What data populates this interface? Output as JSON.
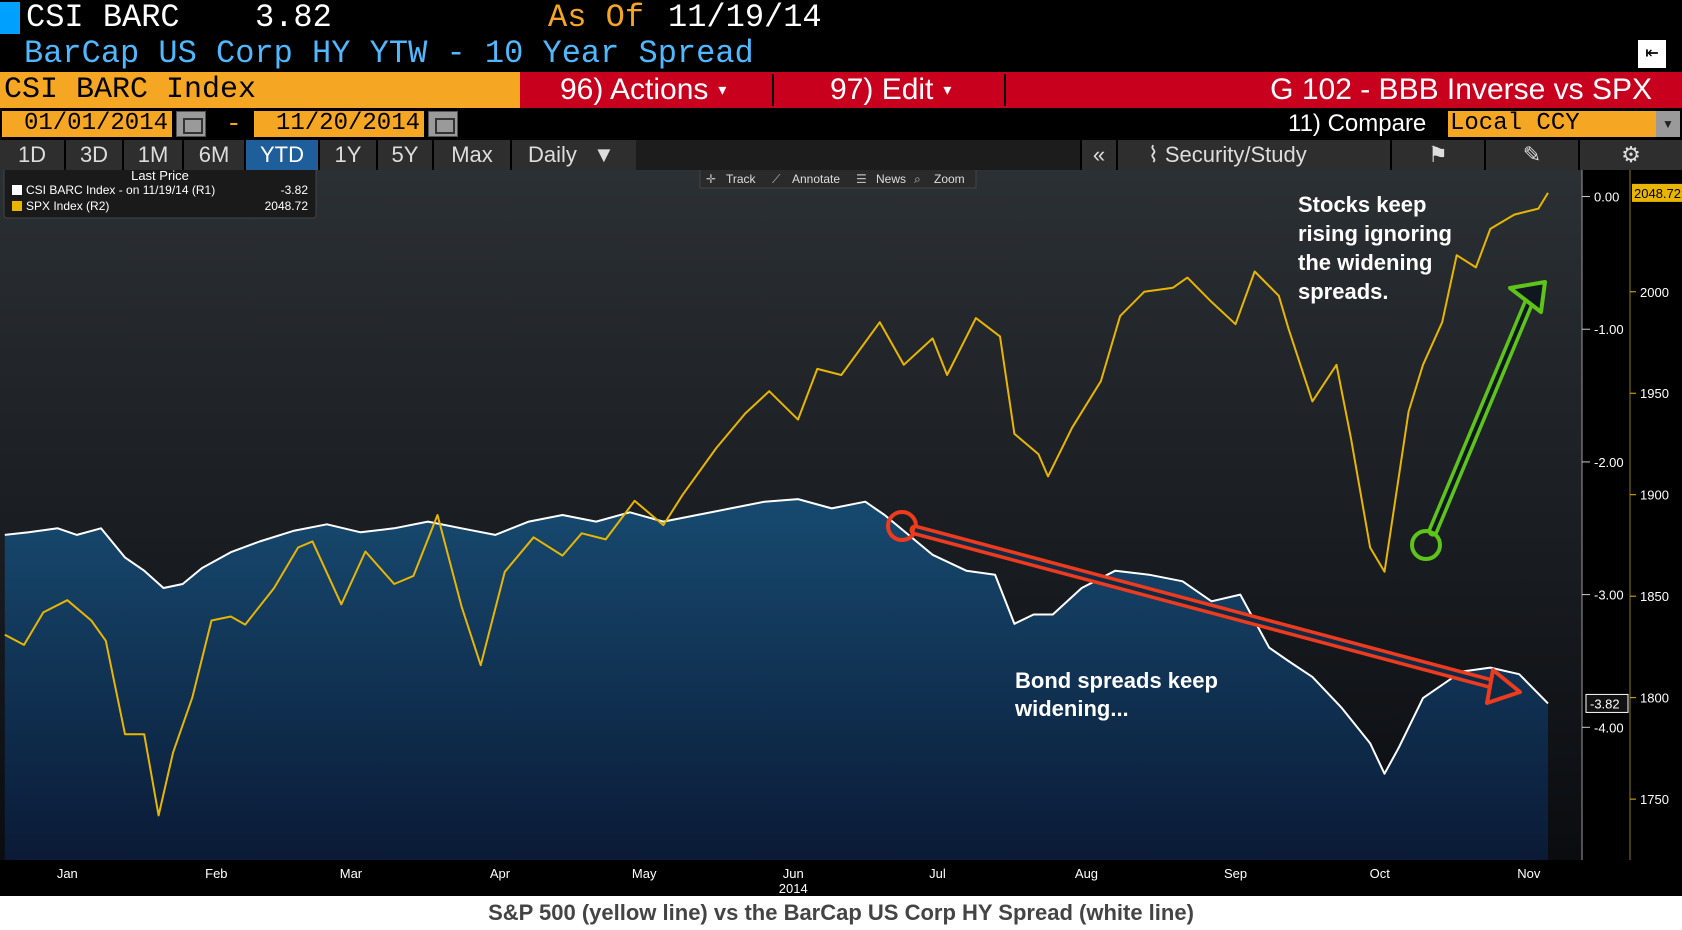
{
  "header": {
    "ticker": "CSI BARC",
    "price": "3.82",
    "asof_label": "As Of",
    "asof_date": "11/19/14",
    "subtitle": "BarCap US Corp HY YTW - 10 Year Spread",
    "index_name": "CSI BARC Index",
    "actions_label": "96) Actions",
    "edit_label": "97) Edit",
    "graph_title": "G 102 - BBB Inverse vs SPX",
    "start_date": "01/01/2014",
    "date_sep": "-",
    "end_date": "11/20/2014",
    "compare_label": "11) Compare",
    "currency": "Local CCY"
  },
  "toolbar": {
    "periods": [
      "1D",
      "3D",
      "1M",
      "6M",
      "YTD",
      "1Y",
      "5Y",
      "Max"
    ],
    "active_period": "YTD",
    "frequency": "Daily",
    "security_study": "Security/Study",
    "chart_tools": [
      "Track",
      "Annotate",
      "News",
      "Zoom"
    ]
  },
  "legend": {
    "title": "Last Price",
    "entries": [
      {
        "label": "CSI BARC Index -  on 11/19/14  (R1)",
        "value": "-3.82",
        "color": "#ffffff"
      },
      {
        "label": "SPX Index  (R2)",
        "value": "2048.72",
        "color": "#e8b600"
      }
    ]
  },
  "chart_data": {
    "type": "line",
    "caption": "S&P 500 (yellow line) vs the BarCap US Corp HY Spread (white line)",
    "x_tick_labels": [
      "Jan",
      "Feb",
      "Mar",
      "Apr",
      "May",
      "Jun",
      "Jul",
      "Aug",
      "Sep",
      "Oct",
      "Nov"
    ],
    "year_label": "2014",
    "x_range": [
      "2014-01-01",
      "2014-11-19"
    ],
    "r1_axis": {
      "ticks": [
        "0.00",
        "-1.00",
        "-2.00",
        "-3.00",
        "-4.00"
      ],
      "range": [
        -5.0,
        0.2
      ],
      "last_value_label": "-3.82"
    },
    "r2_axis": {
      "ticks": [
        "2000",
        "1950",
        "1900",
        "1850",
        "1800",
        "1750"
      ],
      "range": [
        1720,
        2060
      ],
      "last_value_label": "2048.72"
    },
    "series": [
      {
        "name": "CSI BARC Index",
        "axis": "R1",
        "color": "#ffffff",
        "area_fill": true,
        "points": [
          [
            "2014-01-02",
            -2.55
          ],
          [
            "2014-01-07",
            -2.53
          ],
          [
            "2014-01-13",
            -2.5
          ],
          [
            "2014-01-17",
            -2.55
          ],
          [
            "2014-01-22",
            -2.5
          ],
          [
            "2014-01-27",
            -2.72
          ],
          [
            "2014-01-31",
            -2.82
          ],
          [
            "2014-02-04",
            -2.95
          ],
          [
            "2014-02-08",
            -2.92
          ],
          [
            "2014-02-12",
            -2.8
          ],
          [
            "2014-02-18",
            -2.68
          ],
          [
            "2014-02-24",
            -2.6
          ],
          [
            "2014-03-03",
            -2.52
          ],
          [
            "2014-03-10",
            -2.47
          ],
          [
            "2014-03-17",
            -2.53
          ],
          [
            "2014-03-24",
            -2.5
          ],
          [
            "2014-03-31",
            -2.45
          ],
          [
            "2014-04-07",
            -2.5
          ],
          [
            "2014-04-14",
            -2.55
          ],
          [
            "2014-04-21",
            -2.45
          ],
          [
            "2014-04-28",
            -2.4
          ],
          [
            "2014-05-05",
            -2.45
          ],
          [
            "2014-05-12",
            -2.38
          ],
          [
            "2014-05-19",
            -2.45
          ],
          [
            "2014-05-26",
            -2.4
          ],
          [
            "2014-06-02",
            -2.35
          ],
          [
            "2014-06-09",
            -2.3
          ],
          [
            "2014-06-16",
            -2.28
          ],
          [
            "2014-06-23",
            -2.35
          ],
          [
            "2014-06-30",
            -2.3
          ],
          [
            "2014-07-04",
            -2.4
          ],
          [
            "2014-07-09",
            -2.55
          ],
          [
            "2014-07-14",
            -2.7
          ],
          [
            "2014-07-21",
            -2.82
          ],
          [
            "2014-07-27",
            -2.85
          ],
          [
            "2014-07-31",
            -3.22
          ],
          [
            "2014-08-04",
            -3.15
          ],
          [
            "2014-08-08",
            -3.15
          ],
          [
            "2014-08-14",
            -2.95
          ],
          [
            "2014-08-21",
            -2.82
          ],
          [
            "2014-08-28",
            -2.85
          ],
          [
            "2014-09-04",
            -2.9
          ],
          [
            "2014-09-10",
            -3.05
          ],
          [
            "2014-09-16",
            -3.0
          ],
          [
            "2014-09-22",
            -3.4
          ],
          [
            "2014-09-26",
            -3.5
          ],
          [
            "2014-10-01",
            -3.62
          ],
          [
            "2014-10-07",
            -3.85
          ],
          [
            "2014-10-13",
            -4.12
          ],
          [
            "2014-10-16",
            -4.35
          ],
          [
            "2014-10-19",
            -4.15
          ],
          [
            "2014-10-24",
            -3.78
          ],
          [
            "2014-11-01",
            -3.58
          ],
          [
            "2014-11-07",
            -3.55
          ],
          [
            "2014-11-13",
            -3.6
          ],
          [
            "2014-11-19",
            -3.82
          ]
        ]
      },
      {
        "name": "SPX Index",
        "axis": "R2",
        "color": "#e8b600",
        "points": [
          [
            "2014-01-02",
            1831
          ],
          [
            "2014-01-06",
            1826
          ],
          [
            "2014-01-10",
            1842
          ],
          [
            "2014-01-15",
            1848
          ],
          [
            "2014-01-20",
            1838
          ],
          [
            "2014-01-23",
            1828
          ],
          [
            "2014-01-27",
            1782
          ],
          [
            "2014-01-31",
            1782
          ],
          [
            "2014-02-03",
            1742
          ],
          [
            "2014-02-06",
            1773
          ],
          [
            "2014-02-10",
            1800
          ],
          [
            "2014-02-14",
            1838
          ],
          [
            "2014-02-18",
            1840
          ],
          [
            "2014-02-21",
            1836
          ],
          [
            "2014-02-27",
            1854
          ],
          [
            "2014-03-04",
            1874
          ],
          [
            "2014-03-07",
            1877
          ],
          [
            "2014-03-13",
            1846
          ],
          [
            "2014-03-18",
            1872
          ],
          [
            "2014-03-24",
            1856
          ],
          [
            "2014-03-28",
            1860
          ],
          [
            "2014-04-02",
            1890
          ],
          [
            "2014-04-07",
            1845
          ],
          [
            "2014-04-11",
            1816
          ],
          [
            "2014-04-16",
            1862
          ],
          [
            "2014-04-22",
            1879
          ],
          [
            "2014-04-28",
            1870
          ],
          [
            "2014-05-02",
            1881
          ],
          [
            "2014-05-07",
            1878
          ],
          [
            "2014-05-13",
            1897
          ],
          [
            "2014-05-19",
            1885
          ],
          [
            "2014-05-23",
            1900
          ],
          [
            "2014-05-30",
            1923
          ],
          [
            "2014-06-05",
            1940
          ],
          [
            "2014-06-10",
            1951
          ],
          [
            "2014-06-16",
            1937
          ],
          [
            "2014-06-20",
            1962
          ],
          [
            "2014-06-25",
            1959
          ],
          [
            "2014-07-03",
            1985
          ],
          [
            "2014-07-08",
            1964
          ],
          [
            "2014-07-14",
            1977
          ],
          [
            "2014-07-17",
            1959
          ],
          [
            "2014-07-23",
            1987
          ],
          [
            "2014-07-28",
            1978
          ],
          [
            "2014-07-31",
            1930
          ],
          [
            "2014-08-05",
            1920
          ],
          [
            "2014-08-07",
            1909
          ],
          [
            "2014-08-12",
            1933
          ],
          [
            "2014-08-18",
            1956
          ],
          [
            "2014-08-22",
            1988
          ],
          [
            "2014-08-27",
            2000
          ],
          [
            "2014-09-02",
            2002
          ],
          [
            "2014-09-05",
            2007
          ],
          [
            "2014-09-10",
            1995
          ],
          [
            "2014-09-15",
            1984
          ],
          [
            "2014-09-19",
            2010
          ],
          [
            "2014-09-24",
            1998
          ],
          [
            "2014-09-26",
            1982
          ],
          [
            "2014-10-01",
            1946
          ],
          [
            "2014-10-06",
            1964
          ],
          [
            "2014-10-09",
            1928
          ],
          [
            "2014-10-13",
            1874
          ],
          [
            "2014-10-16",
            1862
          ],
          [
            "2014-10-21",
            1941
          ],
          [
            "2014-10-24",
            1964
          ],
          [
            "2014-10-28",
            1985
          ],
          [
            "2014-10-31",
            2018
          ],
          [
            "2014-11-04",
            2012
          ],
          [
            "2014-11-07",
            2031
          ],
          [
            "2014-11-12",
            2038
          ],
          [
            "2014-11-17",
            2041
          ],
          [
            "2014-11-19",
            2048.72
          ]
        ]
      }
    ],
    "annotations": [
      {
        "text": "Stocks keep rising ignoring the widening spreads.",
        "lines": [
          "Stocks keep",
          "rising ignoring",
          "the widening",
          "spreads."
        ],
        "arrow_color": "#5ec41a",
        "direction": "up"
      },
      {
        "text": "Bond spreads keep widening...",
        "lines": [
          "Bond spreads keep",
          "widening..."
        ],
        "arrow_color": "#ee3b1e",
        "direction": "down"
      }
    ]
  }
}
